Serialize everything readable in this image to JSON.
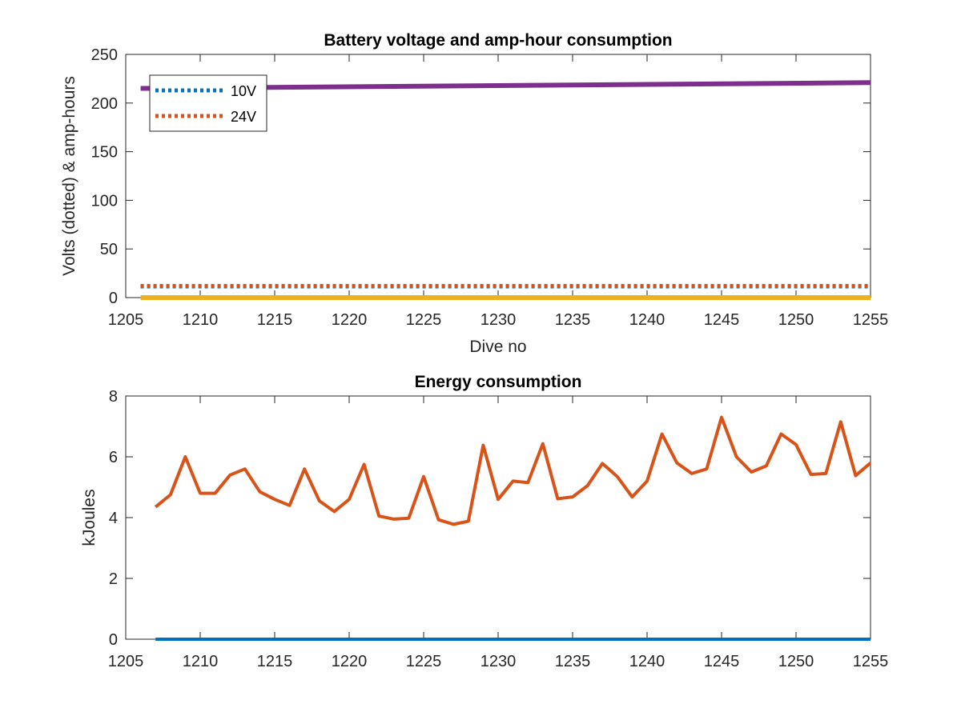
{
  "chart_data": [
    {
      "type": "line",
      "title": "Battery voltage and amp-hour consumption",
      "xlabel": "Dive no",
      "ylabel": "Volts (dotted) & amp-hours",
      "xlim": [
        1205,
        1255
      ],
      "ylim": [
        0,
        250
      ],
      "xticks": [
        1205,
        1210,
        1215,
        1220,
        1225,
        1230,
        1235,
        1240,
        1245,
        1250,
        1255
      ],
      "yticks": [
        0,
        50,
        100,
        150,
        200,
        250
      ],
      "grid": false,
      "legend_position": "top-left",
      "series": [
        {
          "name": "10V",
          "style": "dotted",
          "color": "#0072BD",
          "x": [
            1206,
            1255
          ],
          "y": [
            11.5,
            11.5
          ]
        },
        {
          "name": "24V",
          "style": "dotted",
          "color": "#D95319",
          "x": [
            1206,
            1255
          ],
          "y": [
            12,
            12
          ]
        },
        {
          "style": "solid",
          "color": "#EDB120",
          "x": [
            1206,
            1255
          ],
          "y": [
            0,
            0
          ]
        },
        {
          "style": "solid",
          "color": "#7E2F8E",
          "x": [
            1206,
            1255
          ],
          "y": [
            215,
            221
          ]
        }
      ]
    },
    {
      "type": "line",
      "title": "Energy consumption",
      "xlabel": "",
      "ylabel": "kJoules",
      "xlim": [
        1205,
        1255
      ],
      "ylim": [
        0,
        8
      ],
      "xticks": [
        1205,
        1210,
        1215,
        1220,
        1225,
        1230,
        1235,
        1240,
        1245,
        1250,
        1255
      ],
      "yticks": [
        0,
        2,
        4,
        6,
        8
      ],
      "grid": false,
      "series": [
        {
          "style": "solid",
          "color": "#0072BD",
          "x": [
            1207,
            1255
          ],
          "y": [
            0,
            0
          ]
        },
        {
          "style": "solid",
          "color": "#D95319",
          "x": [
            1207,
            1208,
            1209,
            1210,
            1211,
            1212,
            1213,
            1214,
            1215,
            1216,
            1217,
            1218,
            1219,
            1220,
            1221,
            1222,
            1223,
            1224,
            1225,
            1226,
            1227,
            1228,
            1229,
            1230,
            1231,
            1232,
            1233,
            1234,
            1235,
            1236,
            1237,
            1238,
            1239,
            1240,
            1241,
            1242,
            1243,
            1244,
            1245,
            1246,
            1247,
            1248,
            1249,
            1250,
            1251,
            1252,
            1253,
            1254,
            1255
          ],
          "y": [
            4.35,
            4.75,
            6.0,
            4.8,
            4.8,
            5.4,
            5.6,
            4.85,
            4.6,
            4.4,
            5.6,
            4.55,
            4.2,
            4.6,
            5.75,
            4.05,
            3.95,
            3.98,
            5.35,
            3.93,
            3.78,
            3.88,
            6.38,
            4.6,
            5.2,
            5.15,
            6.43,
            4.62,
            4.68,
            5.05,
            5.78,
            5.35,
            4.68,
            5.2,
            6.75,
            5.8,
            5.45,
            5.6,
            7.3,
            6.0,
            5.5,
            5.7,
            6.75,
            6.4,
            5.42,
            5.45,
            7.15,
            5.38,
            5.8
          ]
        }
      ]
    }
  ]
}
